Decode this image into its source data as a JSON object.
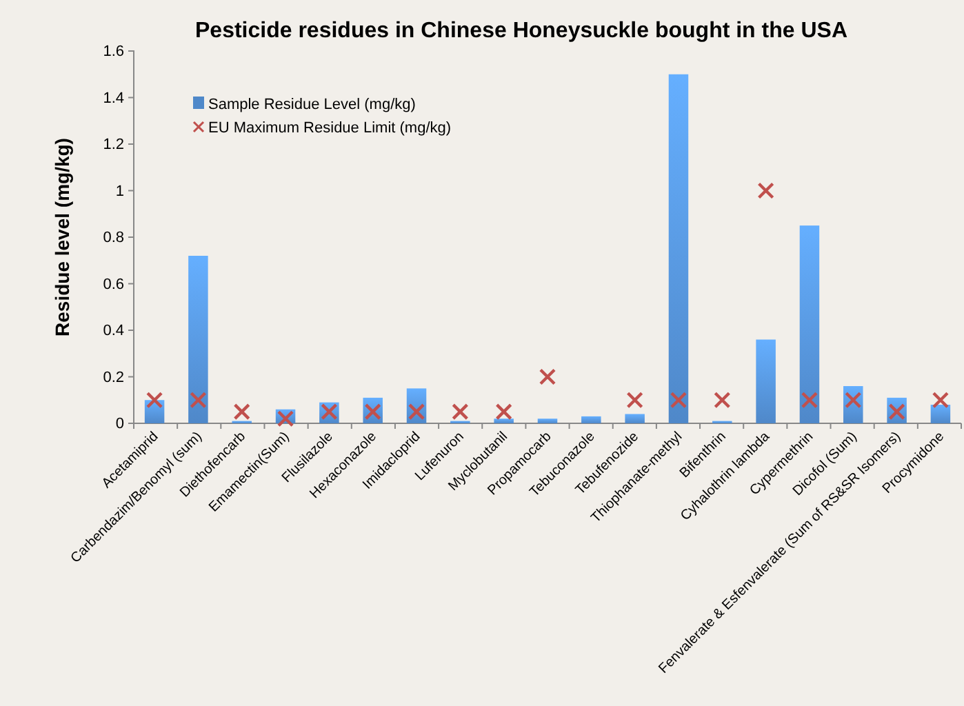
{
  "chart_data": {
    "type": "bar",
    "title": "Pesticide residues in Chinese Honeysuckle bought in the USA",
    "ylabel": "Residue level (mg/kg)",
    "categories": [
      "Acetamiprid",
      "Carbendazim/Benomyl (sum)",
      "Diethofencarb",
      "Emamectin(Sum)",
      "Flusilazole",
      "Hexaconazole",
      "Imidacloprid",
      "Lufenuron",
      "Myclobutanil",
      "Propamocarb",
      "Tebuconazole",
      "Tebufenozide",
      "Thiophanate-methyl",
      "Bifenthrin",
      "Cyhalothrin lambda",
      "Cypermethrin",
      "Dicofol (Sum)",
      "Fenvalerate & Esfenvalerate (Sum of RS&SR Isomers)",
      "Procymidone"
    ],
    "series": [
      {
        "name": "Sample Residue Level (mg/kg)",
        "color": "#4f88c9",
        "values": [
          0.1,
          0.72,
          0.01,
          0.06,
          0.09,
          0.11,
          0.15,
          0.01,
          0.02,
          0.02,
          0.03,
          0.04,
          1.5,
          0.01,
          0.36,
          0.85,
          0.16,
          0.11,
          0.08
        ]
      },
      {
        "name": "EU Maximum Residue Limit (mg/kg)",
        "type": "scatter",
        "marker": "cross",
        "color": "#c0504d",
        "values": [
          0.1,
          0.1,
          0.05,
          0.02,
          0.05,
          0.05,
          0.05,
          0.05,
          0.05,
          0.2,
          null,
          0.1,
          0.1,
          0.1,
          1,
          0.1,
          0.1,
          0.05,
          0.1
        ]
      }
    ],
    "ylim": [
      0,
      1.6
    ],
    "yticks": [
      0,
      0.2,
      0.4,
      0.6,
      0.8,
      1,
      1.2,
      1.4,
      1.6
    ],
    "legend": "top left"
  }
}
